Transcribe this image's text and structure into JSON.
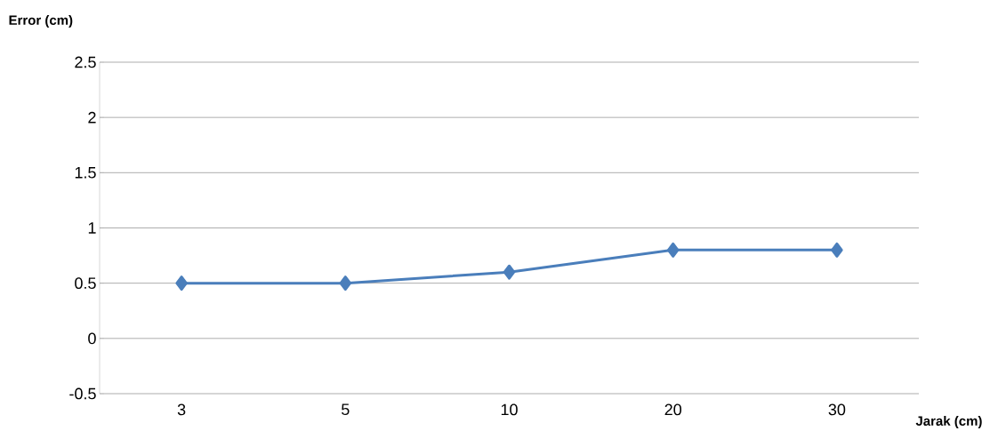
{
  "chart_data": {
    "type": "line",
    "xlabel": "Jarak (cm)",
    "ylabel": "Error (cm)",
    "categories": [
      "3",
      "5",
      "10",
      "20",
      "30"
    ],
    "series": [
      {
        "color": "#4a7ebb",
        "values": [
          0.5,
          0.5,
          0.6,
          0.8,
          0.8
        ]
      }
    ],
    "ylim": [
      -0.5,
      2.5
    ],
    "yticks": [
      -0.5,
      0,
      0.5,
      1,
      1.5,
      2,
      2.5
    ],
    "grid": "y",
    "marker": "diamond",
    "line_style": "solid"
  }
}
